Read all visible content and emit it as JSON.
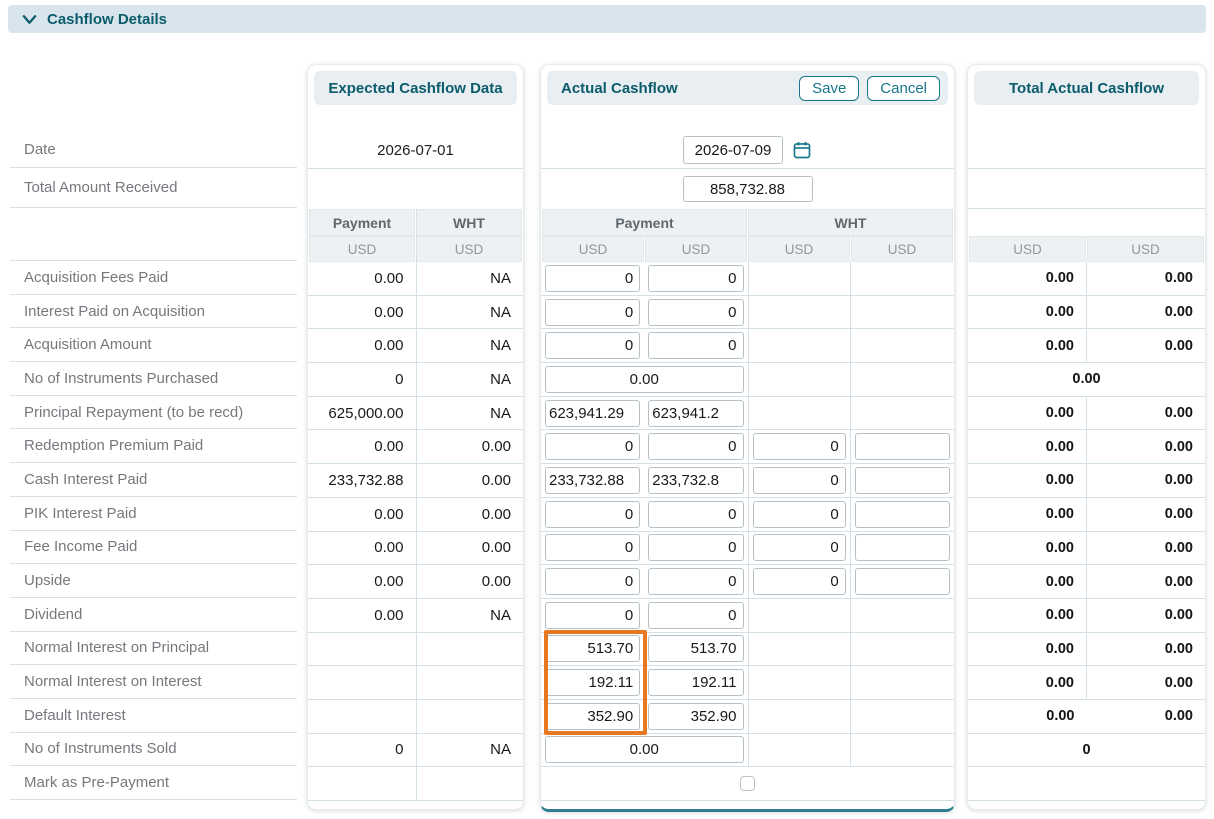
{
  "colors": {
    "accent_teal": "#19768a",
    "title_teal": "#0b5c6b",
    "highlight_orange": "#e87722"
  },
  "section": {
    "title": "Cashflow Details",
    "collapse_icon": "chevron-down-icon"
  },
  "currency": "USD",
  "labels": {
    "date": "Date",
    "total_amount": "Total Amount Received"
  },
  "expected": {
    "title": "Expected Cashflow Data",
    "date_value": "2026-07-01",
    "col_payment": "Payment",
    "col_wht": "WHT"
  },
  "actual": {
    "title": "Actual Cashflow",
    "save_label": "Save",
    "cancel_label": "Cancel",
    "date_value": "2026-07-09",
    "date_icon": "calendar-icon",
    "total_amount_value": "858,732.88",
    "col_payment": "Payment",
    "col_wht": "WHT"
  },
  "total": {
    "title": "Total Actual Cashflow"
  },
  "rows": [
    {
      "label": "Acquisition Fees Paid",
      "expected": [
        "0.00",
        "NA"
      ],
      "actual": {
        "kind": "pair",
        "p1": "0",
        "p2": "0",
        "w1": null,
        "w2": null
      },
      "total": {
        "kind": "pair",
        "values": [
          "0.00",
          "0.00"
        ]
      }
    },
    {
      "label": "Interest Paid on Acquisition",
      "expected": [
        "0.00",
        "NA"
      ],
      "actual": {
        "kind": "pair",
        "p1": "0",
        "p2": "0",
        "w1": null,
        "w2": null
      },
      "total": {
        "kind": "pair",
        "values": [
          "0.00",
          "0.00"
        ]
      }
    },
    {
      "label": "Acquisition Amount",
      "expected": [
        "0.00",
        "NA"
      ],
      "actual": {
        "kind": "pair",
        "p1": "0",
        "p2": "0",
        "w1": null,
        "w2": null
      },
      "total": {
        "kind": "pair",
        "values": [
          "0.00",
          "0.00"
        ]
      }
    },
    {
      "label": "No of Instruments Purchased",
      "expected": [
        "0",
        "NA"
      ],
      "actual": {
        "kind": "wide",
        "value": "0.00"
      },
      "total": {
        "kind": "wide",
        "value": "0.00"
      }
    },
    {
      "label": "Principal Repayment (to be recd)",
      "expected": [
        "625,000.00",
        "NA"
      ],
      "actual": {
        "kind": "pair",
        "p1": "623,941.29",
        "p2": "623,941.2",
        "w1": null,
        "w2": null
      },
      "total": {
        "kind": "pair",
        "values": [
          "0.00",
          "0.00"
        ]
      }
    },
    {
      "label": "Redemption Premium Paid",
      "expected": [
        "0.00",
        "0.00"
      ],
      "actual": {
        "kind": "pair",
        "p1": "0",
        "p2": "0",
        "w1": "0",
        "w2": ""
      },
      "total": {
        "kind": "pair",
        "values": [
          "0.00",
          "0.00"
        ]
      }
    },
    {
      "label": "Cash Interest Paid",
      "expected": [
        "233,732.88",
        "0.00"
      ],
      "actual": {
        "kind": "pair",
        "p1": "233,732.88",
        "p2": "233,732.8",
        "w1": "0",
        "w2": ""
      },
      "total": {
        "kind": "pair",
        "values": [
          "0.00",
          "0.00"
        ]
      }
    },
    {
      "label": "PIK Interest Paid",
      "expected": [
        "0.00",
        "0.00"
      ],
      "actual": {
        "kind": "pair",
        "p1": "0",
        "p2": "0",
        "w1": "0",
        "w2": ""
      },
      "total": {
        "kind": "pair",
        "values": [
          "0.00",
          "0.00"
        ]
      }
    },
    {
      "label": "Fee Income Paid",
      "expected": [
        "0.00",
        "0.00"
      ],
      "actual": {
        "kind": "pair",
        "p1": "0",
        "p2": "0",
        "w1": "0",
        "w2": ""
      },
      "total": {
        "kind": "pair",
        "values": [
          "0.00",
          "0.00"
        ]
      }
    },
    {
      "label": "Upside",
      "expected": [
        "0.00",
        "0.00"
      ],
      "actual": {
        "kind": "pair",
        "p1": "0",
        "p2": "0",
        "w1": "0",
        "w2": ""
      },
      "total": {
        "kind": "pair",
        "values": [
          "0.00",
          "0.00"
        ]
      }
    },
    {
      "label": "Dividend",
      "expected": [
        "0.00",
        "NA"
      ],
      "actual": {
        "kind": "pair",
        "p1": "0",
        "p2": "0",
        "w1": null,
        "w2": null
      },
      "total": {
        "kind": "pair",
        "values": [
          "0.00",
          "0.00"
        ]
      }
    },
    {
      "label": "Normal Interest on Principal",
      "expected": [
        null,
        null
      ],
      "actual": {
        "kind": "pair",
        "p1": "513.70",
        "p2": "513.70",
        "w1": null,
        "w2": null,
        "highlight": true
      },
      "total": {
        "kind": "pair",
        "values": [
          "0.00",
          "0.00"
        ]
      }
    },
    {
      "label": "Normal Interest on Interest",
      "expected": [
        null,
        null
      ],
      "actual": {
        "kind": "pair",
        "p1": "192.11",
        "p2": "192.11",
        "w1": null,
        "w2": null,
        "highlight": true
      },
      "total": {
        "kind": "pair",
        "values": [
          "0.00",
          "0.00"
        ]
      }
    },
    {
      "label": "Default Interest",
      "expected": [
        null,
        null
      ],
      "actual": {
        "kind": "pair",
        "p1": "352.90",
        "p2": "352.90",
        "w1": null,
        "w2": null,
        "highlight": true
      },
      "total": {
        "kind": "pair_nodiv",
        "values": [
          "0.00",
          "0.00"
        ]
      }
    },
    {
      "label": "No of Instruments Sold",
      "expected": [
        "0",
        "NA"
      ],
      "actual": {
        "kind": "wide",
        "value": "0.00"
      },
      "total": {
        "kind": "wide",
        "value": "0"
      }
    },
    {
      "label": "Mark as Pre-Payment",
      "expected": [
        null,
        null
      ],
      "actual": {
        "kind": "checkbox"
      },
      "total": {
        "kind": "blank"
      }
    }
  ]
}
